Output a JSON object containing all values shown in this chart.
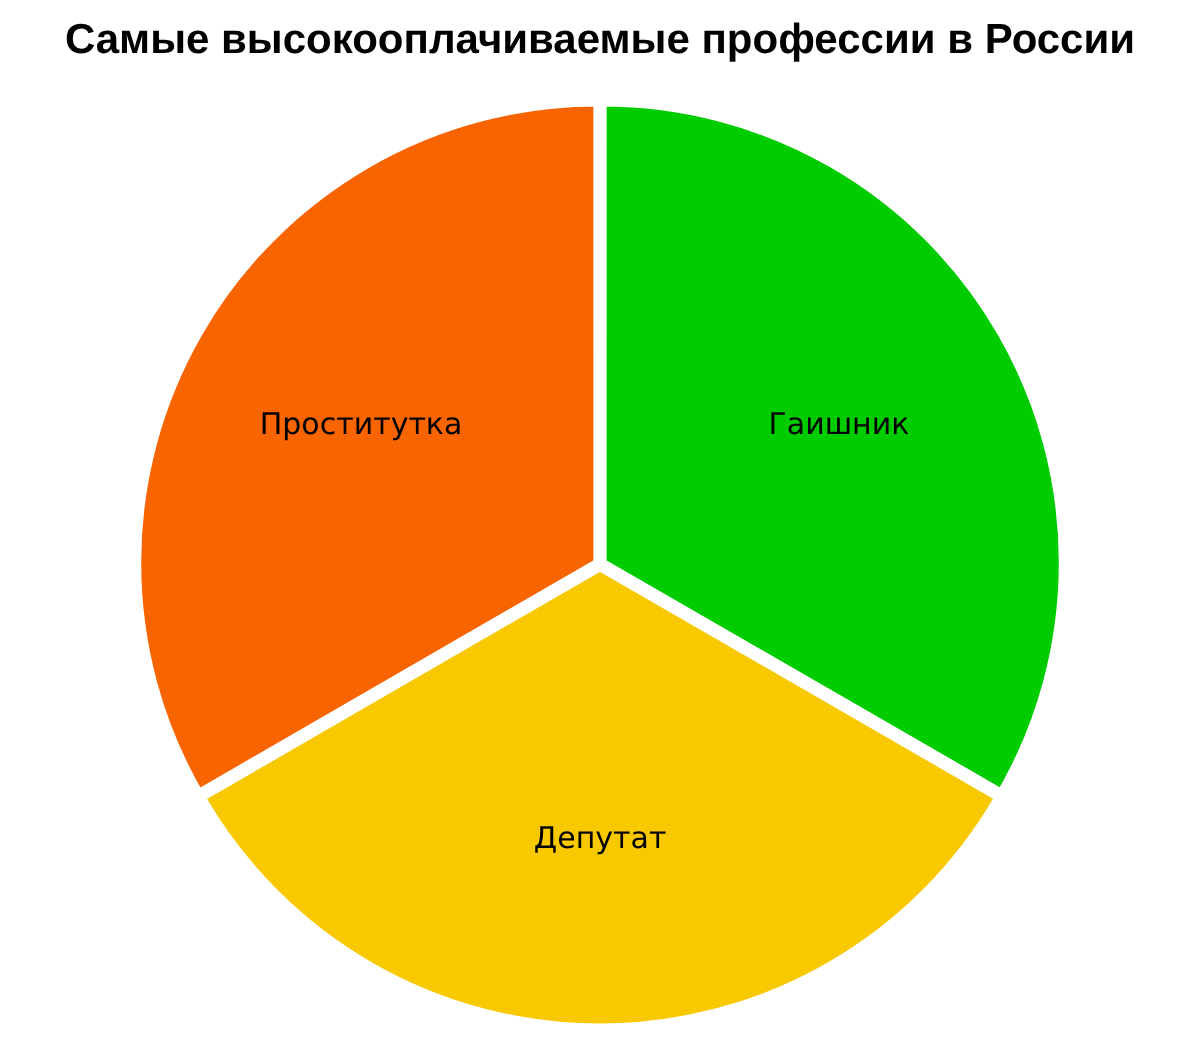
{
  "chart_data": {
    "type": "pie",
    "title": "Самые высокооплачиваемые профессии в России",
    "categories": [
      "Гаишник",
      "Депутат",
      "Проститутка"
    ],
    "values": [
      33.33,
      33.33,
      33.34
    ],
    "colors": [
      "#00cc00",
      "#f8c800",
      "#f86400"
    ],
    "legend": false
  }
}
